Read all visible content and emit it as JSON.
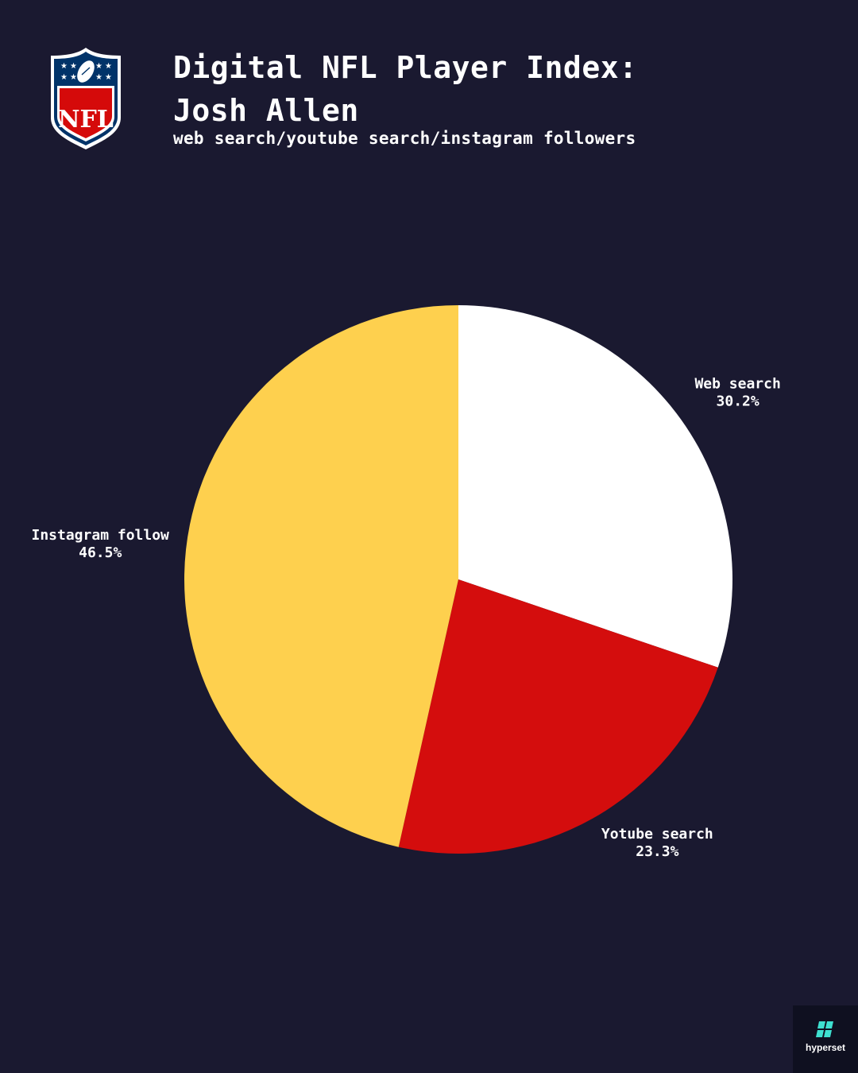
{
  "header": {
    "title_line1": "Digital NFL Player Index:",
    "title_line2": "Josh Allen",
    "subtitle": "web search/youtube search/instagram followers"
  },
  "logos": {
    "nfl_text": "NFL",
    "watermark_text": "hyperset"
  },
  "colors": {
    "background": "#1a1930",
    "web_search": "#ffffff",
    "youtube_search": "#d40d0d",
    "instagram_follow": "#fed04e",
    "nfl_blue": "#013369",
    "nfl_red": "#d50a0a",
    "hyperset_accent": "#3ee0d0"
  },
  "chart_data": {
    "type": "pie",
    "start_angle_deg": 0,
    "direction": "clockwise",
    "slices": [
      {
        "label": "Web search",
        "value": 30.2,
        "display": "30.2%",
        "color": "#ffffff"
      },
      {
        "label": "Yotube search",
        "value": 23.3,
        "display": "23.3%",
        "color": "#d40d0d"
      },
      {
        "label": "Instagram follow",
        "value": 46.5,
        "display": "46.5%",
        "color": "#fed04e"
      }
    ]
  }
}
